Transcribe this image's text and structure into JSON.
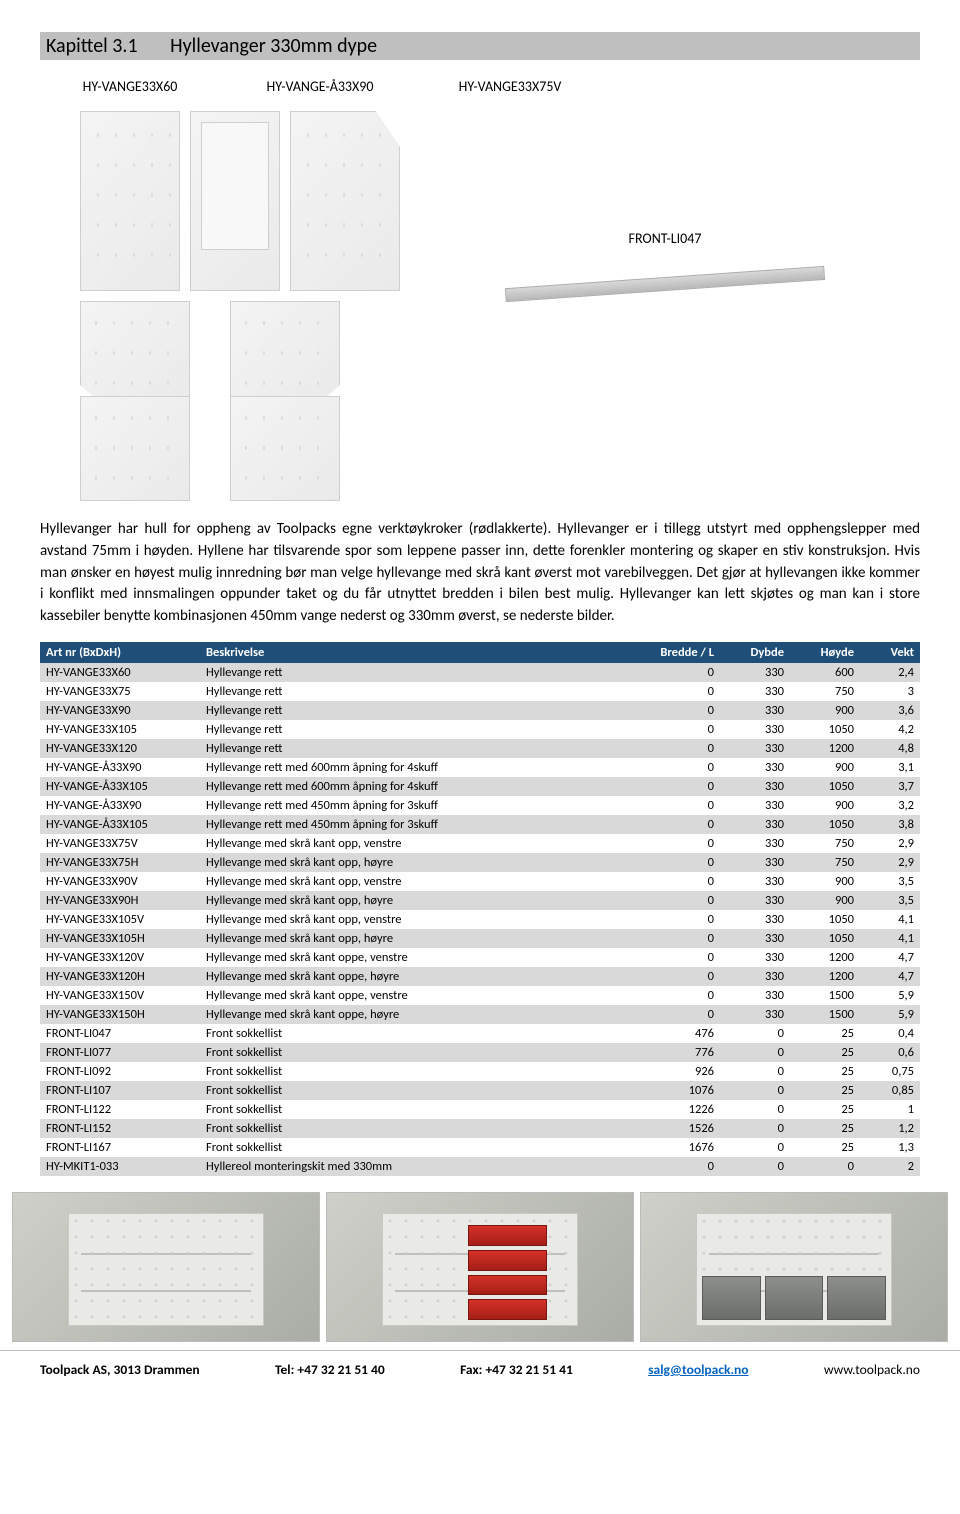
{
  "header": {
    "chapter_label": "Kapittel 3.1",
    "title": "Hyllevanger 330mm dype"
  },
  "figure_labels": {
    "p1": "HY-VANGE33X60",
    "p2": "HY-VANGE-Å33X90",
    "p3": "HY-VANGE33X75V",
    "rail": "FRONT-LI047"
  },
  "body_text": "Hyllevanger har hull for oppheng av Toolpacks egne verktøykroker (rødlakkerte). Hyllevanger er i tillegg utstyrt med opphengslepper med avstand 75mm i høyden. Hyllene har tilsvarende spor som leppene passer inn, dette forenkler montering og skaper en stiv konstruksjon. Hvis man ønsker en høyest mulig innredning bør man velge hyllevange med skrå kant øverst mot varebilveggen. Det gjør at hyllevangen ikke kommer i konflikt med innsmalingen oppunder taket og du får utnyttet bredden i bilen best mulig. Hyllevanger kan lett skjøtes og man kan i store kassebiler benytte kombinasjonen 450mm vange nederst og 330mm øverst, se nederste bilder.",
  "table": {
    "header_bg": "#1f4e79",
    "header_fg": "#ffffff",
    "row_odd_bg": "#d9d9d9",
    "row_even_bg": "#ffffff",
    "columns": [
      "Art nr (BxDxH)",
      "Beskrivelse",
      "Bredde / L",
      "Dybde",
      "Høyde",
      "Vekt"
    ],
    "rows": [
      [
        "HY-VANGE33X60",
        "Hyllevange rett",
        "0",
        "330",
        "600",
        "2,4"
      ],
      [
        "HY-VANGE33X75",
        "Hyllevange rett",
        "0",
        "330",
        "750",
        "3"
      ],
      [
        "HY-VANGE33X90",
        "Hyllevange rett",
        "0",
        "330",
        "900",
        "3,6"
      ],
      [
        "HY-VANGE33X105",
        "Hyllevange rett",
        "0",
        "330",
        "1050",
        "4,2"
      ],
      [
        "HY-VANGE33X120",
        "Hyllevange rett",
        "0",
        "330",
        "1200",
        "4,8"
      ],
      [
        "HY-VANGE-Å33X90",
        "Hyllevange rett med 600mm åpning for 4skuff",
        "0",
        "330",
        "900",
        "3,1"
      ],
      [
        "HY-VANGE-Å33X105",
        "Hyllevange rett med 600mm  åpning for 4skuff",
        "0",
        "330",
        "1050",
        "3,7"
      ],
      [
        "HY-VANGE-Å33X90",
        "Hyllevange rett med 450mm åpning for 3skuff",
        "0",
        "330",
        "900",
        "3,2"
      ],
      [
        "HY-VANGE-Å33X105",
        "Hyllevange rett med 450mm åpning for 3skuff",
        "0",
        "330",
        "1050",
        "3,8"
      ],
      [
        "HY-VANGE33X75V",
        "Hyllevange med skrå kant opp, venstre",
        "0",
        "330",
        "750",
        "2,9"
      ],
      [
        "HY-VANGE33X75H",
        "Hyllevange med skrå kant opp, høyre",
        "0",
        "330",
        "750",
        "2,9"
      ],
      [
        "HY-VANGE33X90V",
        "Hyllevange med skrå kant opp, venstre",
        "0",
        "330",
        "900",
        "3,5"
      ],
      [
        "HY-VANGE33X90H",
        "Hyllevange med skrå kant opp, høyre",
        "0",
        "330",
        "900",
        "3,5"
      ],
      [
        "HY-VANGE33X105V",
        "Hyllevange med skrå kant opp, venstre",
        "0",
        "330",
        "1050",
        "4,1"
      ],
      [
        "HY-VANGE33X105H",
        "Hyllevange med skrå kant opp, høyre",
        "0",
        "330",
        "1050",
        "4,1"
      ],
      [
        "HY-VANGE33X120V",
        "Hyllevange med skrå kant oppe, venstre",
        "0",
        "330",
        "1200",
        "4,7"
      ],
      [
        "HY-VANGE33X120H",
        "Hyllevange med skrå kant oppe, høyre",
        "0",
        "330",
        "1200",
        "4,7"
      ],
      [
        "HY-VANGE33X150V",
        "Hyllevange med skrå kant oppe, venstre",
        "0",
        "330",
        "1500",
        "5,9"
      ],
      [
        "HY-VANGE33X150H",
        "Hyllevange med skrå kant oppe, høyre",
        "0",
        "330",
        "1500",
        "5,9"
      ],
      [
        "FRONT-LI047",
        "Front sokkellist",
        "476",
        "0",
        "25",
        "0,4"
      ],
      [
        "FRONT-LI077",
        "Front sokkellist",
        "776",
        "0",
        "25",
        "0,6"
      ],
      [
        "FRONT-LI092",
        "Front sokkellist",
        "926",
        "0",
        "25",
        "0,75"
      ],
      [
        "FRONT-LI107",
        "Front sokkellist",
        "1076",
        "0",
        "25",
        "0,85"
      ],
      [
        "FRONT-LI122",
        "Front sokkellist",
        "1226",
        "0",
        "25",
        "1"
      ],
      [
        "FRONT-LI152",
        "Front sokkellist",
        "1526",
        "0",
        "25",
        "1,2"
      ],
      [
        "FRONT-LI167",
        "Front sokkellist",
        "1676",
        "0",
        "25",
        "1,3"
      ],
      [
        "HY-MKIT1-033",
        "Hyllereol monteringskit med 330mm",
        "0",
        "0",
        "0",
        "2"
      ]
    ]
  },
  "footer": {
    "company": "Toolpack AS, 3013 Drammen",
    "tel": "Tel: +47 32 21 51 40",
    "fax": "Fax: +47 32 21 51 41",
    "email": "salg@toolpack.no",
    "web": "www.toolpack.no"
  }
}
